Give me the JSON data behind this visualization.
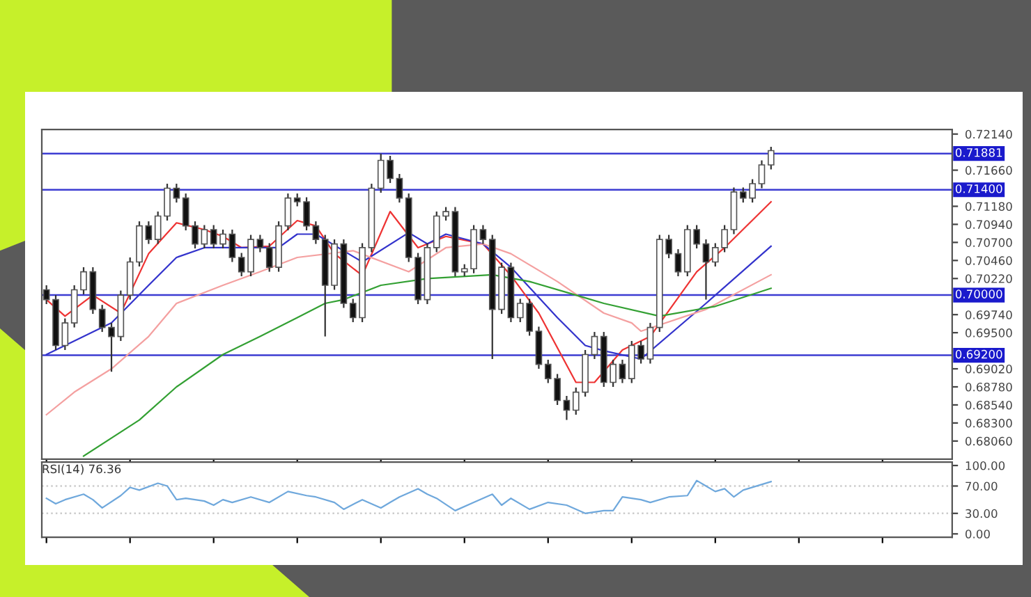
{
  "chart_data": [
    {
      "type": "candlestick",
      "tick_labels": "y",
      "categories": [
        null,
        null,
        null,
        null,
        null,
        null,
        null,
        null,
        null,
        null,
        null,
        null,
        null,
        null,
        null,
        null,
        null,
        null,
        null,
        null,
        null,
        null,
        null,
        null,
        null,
        null,
        null,
        null,
        null,
        null,
        null,
        null,
        null,
        null,
        null,
        null,
        null,
        null,
        null,
        null,
        null,
        null,
        null,
        null,
        null,
        null,
        null,
        null,
        null,
        null,
        null,
        null,
        null,
        null,
        null,
        null,
        null,
        null,
        null,
        null,
        null,
        null,
        null,
        null,
        null,
        null,
        null,
        null,
        null,
        null,
        null,
        null,
        null,
        null,
        null,
        null,
        null,
        null,
        null,
        null,
        null,
        null,
        null,
        null,
        null,
        null,
        null,
        null,
        null,
        null,
        null,
        null,
        null,
        null,
        null,
        null,
        null,
        null
      ],
      "ohlc": [
        [
          0.7007,
          0.7013,
          0.6988,
          0.6994
        ],
        [
          0.6994,
          0.7,
          0.6927,
          0.6933
        ],
        [
          0.6933,
          0.6969,
          0.6927,
          0.6963
        ],
        [
          0.6963,
          0.7013,
          0.6957,
          0.7007
        ],
        [
          0.7007,
          0.7037,
          0.7001,
          0.7031
        ],
        [
          0.7031,
          0.7037,
          0.6975,
          0.6981
        ],
        [
          0.6981,
          0.6987,
          0.6951,
          0.6957
        ],
        [
          0.6957,
          0.6963,
          0.6898,
          0.6945
        ],
        [
          0.6945,
          0.7006,
          0.6939,
          0.7
        ],
        [
          0.7,
          0.705,
          0.6994,
          0.7044
        ],
        [
          0.7044,
          0.7098,
          0.7038,
          0.7092
        ],
        [
          0.7092,
          0.7098,
          0.7068,
          0.7074
        ],
        [
          0.7074,
          0.7111,
          0.7068,
          0.7105
        ],
        [
          0.7105,
          0.7148,
          0.7099,
          0.7142
        ],
        [
          0.7142,
          0.7148,
          0.7123,
          0.7129
        ],
        [
          0.7129,
          0.7135,
          0.7086,
          0.7092
        ],
        [
          0.7092,
          0.7098,
          0.7062,
          0.7068
        ],
        [
          0.7068,
          0.7093,
          0.7062,
          0.7087
        ],
        [
          0.7087,
          0.7093,
          0.7062,
          0.7068
        ],
        [
          0.7068,
          0.7087,
          0.7062,
          0.7081
        ],
        [
          0.7081,
          0.7087,
          0.7044,
          0.705
        ],
        [
          0.705,
          0.7056,
          0.7025,
          0.7031
        ],
        [
          0.7031,
          0.708,
          0.7025,
          0.7074
        ],
        [
          0.7074,
          0.708,
          0.7057,
          0.7063
        ],
        [
          0.7063,
          0.7069,
          0.7031,
          0.7037
        ],
        [
          0.7037,
          0.7098,
          0.7031,
          0.7092
        ],
        [
          0.7092,
          0.7135,
          0.7086,
          0.7129
        ],
        [
          0.7129,
          0.7135,
          0.7118,
          0.7124
        ],
        [
          0.7124,
          0.713,
          0.7086,
          0.7092
        ],
        [
          0.7092,
          0.7098,
          0.7068,
          0.7074
        ],
        [
          0.7074,
          0.708,
          0.6945,
          0.7013
        ],
        [
          0.7013,
          0.7074,
          0.7007,
          0.7068
        ],
        [
          0.7068,
          0.7074,
          0.6983,
          0.6989
        ],
        [
          0.6989,
          0.6995,
          0.6964,
          0.697
        ],
        [
          0.697,
          0.7069,
          0.6964,
          0.7063
        ],
        [
          0.7063,
          0.7148,
          0.7057,
          0.7142
        ],
        [
          0.7142,
          0.7188,
          0.7136,
          0.7179
        ],
        [
          0.7179,
          0.7185,
          0.7149,
          0.7155
        ],
        [
          0.7155,
          0.7161,
          0.7123,
          0.7129
        ],
        [
          0.7129,
          0.7135,
          0.7044,
          0.705
        ],
        [
          0.705,
          0.7056,
          0.6988,
          0.6994
        ],
        [
          0.6994,
          0.7069,
          0.6988,
          0.7063
        ],
        [
          0.7063,
          0.7111,
          0.7057,
          0.7105
        ],
        [
          0.7105,
          0.7117,
          0.7099,
          0.7111
        ],
        [
          0.7111,
          0.7117,
          0.7025,
          0.7031
        ],
        [
          0.7031,
          0.7041,
          0.7025,
          0.7035
        ],
        [
          0.7035,
          0.7093,
          0.7029,
          0.7087
        ],
        [
          0.7087,
          0.7093,
          0.7068,
          0.7074
        ],
        [
          0.7074,
          0.708,
          0.6915,
          0.6981
        ],
        [
          0.6981,
          0.7043,
          0.6975,
          0.7037
        ],
        [
          0.7037,
          0.7043,
          0.6964,
          0.697
        ],
        [
          0.697,
          0.6995,
          0.6964,
          0.6989
        ],
        [
          0.6989,
          0.6995,
          0.6946,
          0.6952
        ],
        [
          0.6952,
          0.6958,
          0.6902,
          0.6908
        ],
        [
          0.6908,
          0.6914,
          0.6883,
          0.6889
        ],
        [
          0.6889,
          0.6895,
          0.6854,
          0.686
        ],
        [
          0.686,
          0.6866,
          0.6834,
          0.6847
        ],
        [
          0.6847,
          0.6877,
          0.6841,
          0.6871
        ],
        [
          0.6871,
          0.6927,
          0.6865,
          0.6921
        ],
        [
          0.6921,
          0.6951,
          0.6915,
          0.6945
        ],
        [
          0.6945,
          0.6951,
          0.6878,
          0.6884
        ],
        [
          0.6884,
          0.6914,
          0.6878,
          0.6908
        ],
        [
          0.6908,
          0.6914,
          0.6883,
          0.6889
        ],
        [
          0.6889,
          0.6939,
          0.6883,
          0.6933
        ],
        [
          0.6933,
          0.6939,
          0.6909,
          0.6915
        ],
        [
          0.6915,
          0.6963,
          0.6909,
          0.6957
        ],
        [
          0.6957,
          0.708,
          0.6951,
          0.7074
        ],
        [
          0.7074,
          0.708,
          0.7049,
          0.7055
        ],
        [
          0.7055,
          0.7061,
          0.7025,
          0.7031
        ],
        [
          0.7031,
          0.7093,
          0.7025,
          0.7087
        ],
        [
          0.7087,
          0.7093,
          0.7062,
          0.7068
        ],
        [
          0.7068,
          0.7074,
          0.6994,
          0.7044
        ],
        [
          0.7044,
          0.7069,
          0.7038,
          0.7063
        ],
        [
          0.7063,
          0.7093,
          0.7057,
          0.7087
        ],
        [
          0.7087,
          0.7143,
          0.7081,
          0.7137
        ],
        [
          0.7137,
          0.7143,
          0.7123,
          0.7129
        ],
        [
          0.7129,
          0.7154,
          0.7123,
          0.7148
        ],
        [
          0.7148,
          0.7179,
          0.7142,
          0.7173
        ],
        [
          0.7173,
          0.7197,
          0.7167,
          0.7192
        ],
        null,
        null,
        null,
        null,
        null,
        null,
        null,
        null,
        null,
        null,
        null,
        null,
        null,
        null,
        null,
        null,
        null,
        null,
        null
      ],
      "series": [
        {
          "type": "line",
          "color": "#ee3333",
          "values": [
            0.6994,
            null,
            0.6972,
            null,
            null,
            0.7,
            null,
            null,
            0.6976,
            null,
            null,
            0.7055,
            null,
            null,
            0.7096,
            null,
            null,
            0.7087,
            null,
            0.7078,
            null,
            0.7063,
            null,
            null,
            0.7065,
            null,
            null,
            0.7099,
            null,
            0.7092,
            null,
            0.7055,
            null,
            null,
            0.7026,
            null,
            null,
            0.7111,
            null,
            null,
            0.7063,
            null,
            null,
            0.7078,
            null,
            null,
            null,
            0.7068,
            null,
            null,
            0.7026,
            null,
            null,
            0.6976,
            null,
            null,
            null,
            0.6884,
            null,
            0.6884,
            null,
            null,
            0.6927,
            null,
            null,
            0.6945,
            null,
            null,
            null,
            null,
            0.7031,
            null,
            null,
            0.7063,
            null,
            null,
            null,
            null,
            0.7124,
            null,
            null,
            null,
            null,
            null,
            null,
            null,
            null,
            null,
            null,
            null,
            null,
            null,
            null,
            null,
            null,
            null,
            null,
            null
          ]
        },
        {
          "type": "line",
          "color": "#3333cc",
          "values": [
            0.6921,
            null,
            null,
            0.6939,
            null,
            null,
            null,
            0.6963,
            null,
            null,
            null,
            0.7013,
            null,
            null,
            0.705,
            null,
            null,
            0.7063,
            null,
            null,
            null,
            0.7063,
            null,
            null,
            null,
            0.7063,
            null,
            0.7081,
            null,
            0.7081,
            null,
            null,
            null,
            null,
            0.7044,
            null,
            null,
            null,
            null,
            0.7083,
            null,
            0.7068,
            null,
            0.7081,
            null,
            null,
            null,
            0.7068,
            null,
            null,
            0.7037,
            null,
            null,
            null,
            null,
            0.697,
            null,
            null,
            0.6933,
            null,
            0.6926,
            null,
            null,
            null,
            0.6915,
            null,
            null,
            null,
            null,
            null,
            null,
            0.6989,
            null,
            null,
            null,
            null,
            null,
            null,
            0.7065,
            null,
            null,
            null,
            null,
            null,
            null,
            null,
            null,
            null,
            null,
            null,
            null,
            null,
            null,
            null,
            null,
            null,
            null,
            null
          ]
        },
        {
          "type": "line",
          "color": "#f4a0a0",
          "values": [
            0.6841,
            null,
            null,
            0.6871,
            null,
            null,
            null,
            0.6902,
            null,
            null,
            null,
            0.6945,
            null,
            null,
            0.6989,
            null,
            null,
            null,
            null,
            0.7013,
            null,
            null,
            null,
            0.7031,
            null,
            null,
            null,
            0.705,
            null,
            null,
            null,
            null,
            null,
            0.7059,
            null,
            null,
            null,
            null,
            null,
            0.7031,
            null,
            null,
            null,
            0.7063,
            null,
            null,
            null,
            0.7068,
            null,
            null,
            0.7055,
            null,
            null,
            null,
            null,
            0.7018,
            null,
            null,
            null,
            null,
            0.6976,
            null,
            null,
            0.6963,
            0.6952,
            null,
            null,
            null,
            null,
            null,
            null,
            0.6981,
            null,
            null,
            null,
            null,
            null,
            null,
            0.7027,
            null,
            null,
            null,
            null,
            null,
            null,
            null,
            null,
            null,
            null,
            null,
            null,
            null,
            null,
            null,
            null,
            null,
            null,
            null
          ]
        },
        {
          "type": "line",
          "color": "#33a033",
          "values": [
            null,
            null,
            null,
            null,
            0.6786,
            null,
            null,
            null,
            null,
            null,
            0.6834,
            null,
            null,
            null,
            0.6878,
            null,
            null,
            null,
            null,
            0.6921,
            null,
            null,
            null,
            0.6945,
            null,
            null,
            null,
            0.697,
            null,
            null,
            0.6989,
            null,
            0.6994,
            null,
            null,
            null,
            0.7013,
            null,
            null,
            null,
            null,
            0.7022,
            null,
            null,
            null,
            null,
            null,
            null,
            0.7027,
            null,
            null,
            null,
            0.7018,
            null,
            null,
            null,
            null,
            0.7,
            null,
            null,
            0.6989,
            null,
            null,
            null,
            null,
            null,
            0.6972,
            null,
            null,
            null,
            null,
            null,
            0.6985,
            null,
            null,
            null,
            null,
            null,
            0.7009,
            null,
            null,
            null,
            null,
            null,
            null,
            null,
            null,
            null,
            null,
            null,
            null,
            null,
            null,
            null,
            null,
            null,
            null,
            null
          ]
        }
      ],
      "ref_lines": [
        {
          "axis": "y",
          "value": 0.71881,
          "label": "0.71881",
          "color": "#3c3cd2"
        },
        {
          "axis": "y",
          "value": 0.714,
          "label": "0.71400",
          "color": "#3c3cd2"
        },
        {
          "axis": "y",
          "value": 0.7,
          "label": "0.70000",
          "color": "#3c3cd2"
        },
        {
          "axis": "y",
          "value": 0.692,
          "label": "0.69200",
          "color": "#3c3cd2"
        }
      ],
      "ylim": [
        0.6782,
        0.722
      ],
      "yticks": [
        {
          "value": 0.7214,
          "label": "0.72140"
        },
        {
          "value": 0.7166,
          "label": "0.71660"
        },
        {
          "value": 0.7118,
          "label": "0.71180"
        },
        {
          "value": 0.7094,
          "label": "0.70940"
        },
        {
          "value": 0.707,
          "label": "0.70700"
        },
        {
          "value": 0.7046,
          "label": "0.70460"
        },
        {
          "value": 0.7022,
          "label": "0.70220"
        },
        {
          "value": 0.6974,
          "label": "0.69740"
        },
        {
          "value": 0.695,
          "label": "0.69500"
        },
        {
          "value": 0.6902,
          "label": "0.69020"
        },
        {
          "value": 0.6878,
          "label": "0.68780"
        },
        {
          "value": 0.6854,
          "label": "0.68540"
        },
        {
          "value": 0.683,
          "label": "0.68300"
        },
        {
          "value": 0.6806,
          "label": "0.68060"
        }
      ]
    },
    {
      "type": "line",
      "title": "RSI(14) 76.36",
      "tick_labels": "y",
      "categories": [
        null,
        null,
        null,
        null,
        null,
        null,
        null,
        null,
        null,
        null,
        null,
        null,
        null,
        null,
        null,
        null,
        null,
        null,
        null,
        null,
        null,
        null,
        null,
        null,
        null,
        null,
        null,
        null,
        null,
        null,
        null,
        null,
        null,
        null,
        null,
        null,
        null,
        null,
        null,
        null,
        null,
        null,
        null,
        null,
        null,
        null,
        null,
        null,
        null,
        null,
        null,
        null,
        null,
        null,
        null,
        null,
        null,
        null,
        null,
        null,
        null,
        null,
        null,
        null,
        null,
        null,
        null,
        null,
        null,
        null,
        null,
        null,
        null,
        null,
        null,
        null,
        null,
        null,
        null,
        null,
        null,
        null,
        null,
        null,
        null,
        null,
        null,
        null,
        null,
        null,
        null,
        null,
        null,
        null,
        null,
        null,
        null,
        null
      ],
      "series": [
        {
          "type": "line",
          "color": "#6fa8dc",
          "values": [
            52,
            44,
            50,
            null,
            58,
            50,
            38,
            null,
            56,
            68,
            64,
            null,
            74,
            70,
            50,
            52,
            null,
            48,
            42,
            50,
            46,
            null,
            54,
            null,
            46,
            null,
            62,
            null,
            56,
            54,
            null,
            46,
            36,
            null,
            50,
            null,
            38,
            46,
            54,
            null,
            66,
            58,
            52,
            null,
            34,
            null,
            46,
            null,
            58,
            42,
            52,
            null,
            36,
            null,
            46,
            null,
            42,
            null,
            30,
            null,
            34,
            34,
            54,
            null,
            50,
            46,
            null,
            54,
            null,
            56,
            78,
            70,
            62,
            66,
            54,
            64,
            null,
            null,
            76.36,
            null,
            null,
            null,
            null,
            null,
            null,
            null,
            null,
            null,
            null,
            null,
            null,
            null,
            null,
            null,
            null,
            null,
            null,
            null
          ]
        }
      ],
      "ref_lines": [
        {
          "axis": "y",
          "value": 30,
          "color": "#cccccc",
          "line_style": "dotted"
        },
        {
          "axis": "y",
          "value": 70,
          "color": "#cccccc",
          "line_style": "dotted"
        }
      ],
      "ylim": [
        -5,
        105
      ],
      "yticks": [
        {
          "value": 0,
          "label": "0.00"
        },
        {
          "value": 30,
          "label": "30.00"
        },
        {
          "value": 70,
          "label": "70.00"
        },
        {
          "value": 100,
          "label": "100.00"
        }
      ]
    }
  ]
}
